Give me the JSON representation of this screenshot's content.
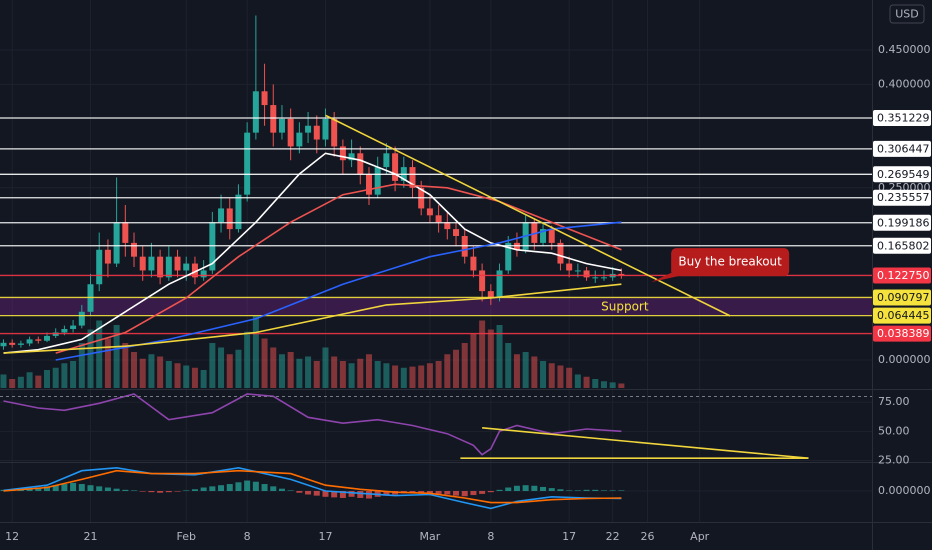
{
  "chart_data": [
    {
      "type": "candlestick",
      "currency": "USD",
      "up_color": "#26a69a",
      "down_color": "#ef5350",
      "xlim": [
        10.6,
        110.8
      ],
      "xticks": [
        {
          "value": 12,
          "label": "12"
        },
        {
          "value": 21,
          "label": "21"
        },
        {
          "value": 32,
          "label": "Feb"
        },
        {
          "value": 39,
          "label": "8"
        },
        {
          "value": 48,
          "label": "17"
        },
        {
          "value": 60,
          "label": "Mar"
        },
        {
          "value": 67,
          "label": "8"
        },
        {
          "value": 76,
          "label": "17"
        },
        {
          "value": 81,
          "label": "22"
        },
        {
          "value": 85,
          "label": "26"
        },
        {
          "value": 91,
          "label": "Apr"
        }
      ],
      "ylim": [
        -0.0406,
        0.5225
      ],
      "yticks": [
        {
          "value": 0.45,
          "label": "0.450000"
        },
        {
          "value": 0.4,
          "label": "0.400000"
        },
        {
          "value": 0.25,
          "label": "0.250000"
        },
        {
          "value": 0,
          "label": "0.000000"
        }
      ],
      "x": [
        11,
        12,
        13,
        14,
        15,
        16,
        17,
        18,
        19,
        20,
        21,
        22,
        23,
        24,
        25,
        26,
        27,
        28,
        29,
        30,
        31,
        32,
        33,
        34,
        35,
        36,
        37,
        38,
        39,
        40,
        41,
        42,
        43,
        44,
        45,
        46,
        47,
        48,
        49,
        50,
        51,
        52,
        53,
        54,
        55,
        56,
        57,
        58,
        59,
        60,
        61,
        62,
        63,
        64,
        65,
        66,
        67,
        68,
        69,
        70,
        71,
        72,
        73,
        74,
        75,
        76,
        77,
        78,
        79,
        80,
        81,
        82
      ],
      "open": [
        0.02,
        0.025,
        0.022,
        0.024,
        0.03,
        0.028,
        0.035,
        0.04,
        0.045,
        0.05,
        0.07,
        0.11,
        0.16,
        0.14,
        0.2,
        0.17,
        0.15,
        0.13,
        0.15,
        0.12,
        0.15,
        0.13,
        0.14,
        0.12,
        0.13,
        0.2,
        0.22,
        0.19,
        0.24,
        0.33,
        0.39,
        0.37,
        0.33,
        0.35,
        0.31,
        0.33,
        0.34,
        0.32,
        0.35,
        0.31,
        0.29,
        0.3,
        0.27,
        0.24,
        0.28,
        0.3,
        0.26,
        0.28,
        0.25,
        0.22,
        0.21,
        0.2,
        0.19,
        0.18,
        0.15,
        0.13,
        0.1,
        0.09,
        0.13,
        0.17,
        0.16,
        0.2,
        0.17,
        0.19,
        0.17,
        0.14,
        0.13,
        0.13,
        0.12,
        0.12,
        0.12,
        0.125
      ],
      "high": [
        0.03,
        0.03,
        0.028,
        0.034,
        0.034,
        0.04,
        0.046,
        0.05,
        0.058,
        0.08,
        0.125,
        0.185,
        0.175,
        0.265,
        0.225,
        0.185,
        0.165,
        0.17,
        0.16,
        0.165,
        0.16,
        0.15,
        0.15,
        0.145,
        0.215,
        0.24,
        0.235,
        0.255,
        0.345,
        0.5,
        0.43,
        0.4,
        0.37,
        0.365,
        0.345,
        0.36,
        0.355,
        0.365,
        0.36,
        0.32,
        0.32,
        0.31,
        0.28,
        0.295,
        0.315,
        0.31,
        0.295,
        0.29,
        0.26,
        0.24,
        0.225,
        0.215,
        0.2,
        0.19,
        0.165,
        0.14,
        0.11,
        0.14,
        0.18,
        0.185,
        0.21,
        0.205,
        0.2,
        0.195,
        0.175,
        0.15,
        0.14,
        0.135,
        0.13,
        0.13,
        0.135,
        0.133
      ],
      "low": [
        0.015,
        0.018,
        0.018,
        0.02,
        0.024,
        0.026,
        0.032,
        0.036,
        0.04,
        0.046,
        0.064,
        0.1,
        0.12,
        0.135,
        0.15,
        0.135,
        0.115,
        0.12,
        0.11,
        0.115,
        0.12,
        0.115,
        0.11,
        0.115,
        0.125,
        0.185,
        0.175,
        0.185,
        0.23,
        0.32,
        0.34,
        0.31,
        0.32,
        0.29,
        0.3,
        0.315,
        0.3,
        0.31,
        0.295,
        0.27,
        0.28,
        0.255,
        0.225,
        0.235,
        0.27,
        0.245,
        0.25,
        0.235,
        0.21,
        0.2,
        0.185,
        0.175,
        0.165,
        0.14,
        0.12,
        0.085,
        0.08,
        0.085,
        0.125,
        0.15,
        0.155,
        0.16,
        0.165,
        0.16,
        0.13,
        0.12,
        0.12,
        0.115,
        0.112,
        0.115,
        0.115,
        0.118
      ],
      "close": [
        0.025,
        0.022,
        0.024,
        0.03,
        0.028,
        0.035,
        0.04,
        0.045,
        0.05,
        0.07,
        0.11,
        0.16,
        0.14,
        0.2,
        0.17,
        0.15,
        0.13,
        0.15,
        0.12,
        0.15,
        0.13,
        0.14,
        0.12,
        0.13,
        0.2,
        0.22,
        0.19,
        0.24,
        0.33,
        0.39,
        0.37,
        0.33,
        0.35,
        0.31,
        0.33,
        0.34,
        0.32,
        0.35,
        0.31,
        0.29,
        0.3,
        0.27,
        0.24,
        0.28,
        0.3,
        0.26,
        0.28,
        0.25,
        0.22,
        0.21,
        0.2,
        0.19,
        0.18,
        0.15,
        0.13,
        0.1,
        0.09,
        0.13,
        0.17,
        0.16,
        0.2,
        0.17,
        0.19,
        0.17,
        0.14,
        0.13,
        0.13,
        0.12,
        0.12,
        0.12,
        0.125,
        0.12275
      ],
      "volume": [
        60,
        40,
        50,
        70,
        55,
        80,
        90,
        110,
        120,
        200,
        260,
        300,
        220,
        280,
        200,
        160,
        130,
        150,
        140,
        120,
        110,
        100,
        90,
        80,
        200,
        180,
        150,
        170,
        250,
        320,
        220,
        180,
        150,
        160,
        130,
        140,
        120,
        180,
        140,
        120,
        110,
        130,
        150,
        120,
        110,
        100,
        90,
        95,
        100,
        110,
        120,
        150,
        170,
        200,
        240,
        300,
        260,
        280,
        200,
        150,
        160,
        140,
        120,
        110,
        100,
        90,
        60,
        50,
        40,
        30,
        25,
        20
      ],
      "volume_max": 400,
      "lines": [
        {
          "color": "#ffffff",
          "x": [
            11,
            15,
            20,
            25,
            30,
            35,
            40,
            45,
            48,
            52,
            56,
            60,
            64,
            67,
            70,
            74,
            78,
            82
          ],
          "values": [
            0.01,
            0.015,
            0.03,
            0.07,
            0.11,
            0.14,
            0.2,
            0.27,
            0.3,
            0.29,
            0.27,
            0.24,
            0.19,
            0.17,
            0.16,
            0.155,
            0.14,
            0.13
          ]
        },
        {
          "color": "#ef5350",
          "x": [
            17,
            25,
            32,
            38,
            44,
            50,
            56,
            62,
            68,
            74,
            78,
            82
          ],
          "values": [
            0.01,
            0.04,
            0.09,
            0.15,
            0.2,
            0.24,
            0.255,
            0.25,
            0.23,
            0.2,
            0.18,
            0.16
          ]
        },
        {
          "color": "#2962ff",
          "x": [
            17,
            30,
            40,
            50,
            60,
            68,
            74,
            82
          ],
          "values": [
            0,
            0.03,
            0.06,
            0.11,
            0.15,
            0.17,
            0.19,
            0.2
          ]
        },
        {
          "color": "#f0d53c",
          "x": [
            11,
            25,
            40,
            55,
            67,
            82
          ],
          "values": [
            0.01,
            0.02,
            0.04,
            0.08,
            0.09,
            0.11
          ]
        }
      ],
      "trendlines": [
        {
          "color": "#f0d53c",
          "x": [
            48,
            94.5
          ],
          "values": [
            0.355,
            0.064
          ]
        }
      ],
      "band": {
        "range": [
          0.064445,
          0.090797
        ],
        "color": "rgba(156,39,176,0.28)"
      },
      "levels": [
        {
          "value": 0.351229,
          "color": "#ffffff",
          "text_color": "#131722"
        },
        {
          "value": 0.306447,
          "color": "#ffffff",
          "text_color": "#131722"
        },
        {
          "value": 0.269549,
          "color": "#ffffff",
          "text_color": "#131722"
        },
        {
          "value": 0.235557,
          "color": "#ffffff",
          "text_color": "#131722"
        },
        {
          "value": 0.199186,
          "color": "#ffffff",
          "text_color": "#131722"
        },
        {
          "value": 0.165802,
          "color": "#ffffff",
          "text_color": "#131722"
        },
        {
          "value": 0.12275,
          "label": "0.122750",
          "color": "#f23645",
          "text_color": "#ffffff"
        },
        {
          "value": 0.090797,
          "color": "#f5e23c",
          "text_color": "#131722"
        },
        {
          "value": 0.064445,
          "color": "#f5e23c",
          "text_color": "#131722"
        },
        {
          "value": 0.038389,
          "color": "#f23645",
          "text_color": "#ffffff"
        }
      ],
      "annotations": [
        {
          "text": "Buy the breakout",
          "x": 94.5,
          "y": 0.142,
          "style": "callout",
          "color": "#b71c1c"
        },
        {
          "text": "Support",
          "x": 82.4,
          "y": 0.077,
          "style": "text",
          "color": "#f5e23c"
        }
      ]
    },
    {
      "type": "line",
      "color": "#8e44ad",
      "ylim": [
        22,
        82
      ],
      "yticks": [
        {
          "value": 75,
          "label": "75.00"
        },
        {
          "value": 50,
          "label": "50.00"
        },
        {
          "value": 25,
          "label": "25.00"
        }
      ],
      "x": [
        11,
        15,
        18,
        22,
        26,
        30,
        35,
        39,
        42,
        46,
        50,
        54,
        58,
        62,
        65,
        66,
        67,
        68,
        70,
        74,
        78,
        82
      ],
      "values": [
        76,
        70,
        68,
        74,
        82,
        60,
        66,
        82,
        80,
        62,
        57,
        60,
        55,
        48,
        38,
        30,
        35,
        50,
        55,
        48,
        52,
        50
      ],
      "trendlines": [
        {
          "color": "#f0d53c",
          "x": [
            66,
            103.5
          ],
          "values": [
            53,
            27
          ]
        },
        {
          "color": "#f0d53c",
          "x": [
            63.5,
            103.5
          ],
          "values": [
            27,
            27
          ]
        }
      ]
    },
    {
      "type": "macd",
      "up_color": "#26a69a",
      "down_color": "#ef5350",
      "ylim": [
        -0.05,
        0.05
      ],
      "yticks": [
        {
          "value": 0,
          "label": "0.000000"
        }
      ],
      "x": [
        11,
        12,
        13,
        14,
        15,
        16,
        17,
        18,
        19,
        20,
        21,
        22,
        23,
        24,
        25,
        26,
        27,
        28,
        29,
        30,
        31,
        32,
        33,
        34,
        35,
        36,
        37,
        38,
        39,
        40,
        41,
        42,
        43,
        44,
        45,
        46,
        47,
        48,
        49,
        50,
        51,
        52,
        53,
        54,
        55,
        56,
        57,
        58,
        59,
        60,
        61,
        62,
        63,
        64,
        65,
        66,
        67,
        68,
        69,
        70,
        71,
        72,
        73,
        74,
        75,
        76,
        77,
        78,
        79,
        80,
        81,
        82
      ],
      "histogram": [
        0.002,
        0.003,
        0.004,
        0.005,
        0.006,
        0.008,
        0.01,
        0.012,
        0.014,
        0.012,
        0.01,
        0.008,
        0.006,
        0.004,
        0.002,
        0.001,
        -0.001,
        -0.002,
        -0.003,
        -0.002,
        -0.001,
        0.001,
        0.003,
        0.006,
        0.008,
        0.01,
        0.012,
        0.015,
        0.018,
        0.016,
        0.012,
        0.008,
        0.004,
        0.001,
        -0.003,
        -0.006,
        -0.008,
        -0.01,
        -0.011,
        -0.012,
        -0.01,
        -0.012,
        -0.013,
        -0.01,
        -0.008,
        -0.006,
        -0.004,
        -0.002,
        -0.003,
        -0.004,
        -0.005,
        -0.006,
        -0.008,
        -0.009,
        -0.007,
        -0.005,
        -0.002,
        0.002,
        0.006,
        0.009,
        0.01,
        0.009,
        0.007,
        0.005,
        0.003,
        0.001,
        0.001,
        0.002,
        0.002,
        0.001,
        0.001,
        0.001
      ],
      "lines": [
        {
          "color": "#2196f3",
          "x": [
            11,
            16,
            20,
            24,
            28,
            33,
            38,
            44,
            48,
            52,
            56,
            60,
            64,
            67,
            70,
            74,
            78,
            82
          ],
          "values": [
            0.001,
            0.01,
            0.035,
            0.04,
            0.03,
            0.028,
            0.04,
            0.02,
            0,
            -0.004,
            -0.008,
            -0.006,
            -0.02,
            -0.03,
            -0.018,
            -0.01,
            -0.012,
            -0.013
          ]
        },
        {
          "color": "#ff6d00",
          "x": [
            11,
            16,
            20,
            24,
            28,
            33,
            38,
            44,
            48,
            52,
            56,
            60,
            64,
            67,
            70,
            74,
            78,
            82
          ],
          "values": [
            0,
            0.006,
            0.02,
            0.035,
            0.03,
            0.03,
            0.035,
            0.03,
            0.01,
            0.003,
            -0.002,
            -0.004,
            -0.012,
            -0.02,
            -0.02,
            -0.015,
            -0.013,
            -0.012
          ]
        }
      ]
    }
  ]
}
